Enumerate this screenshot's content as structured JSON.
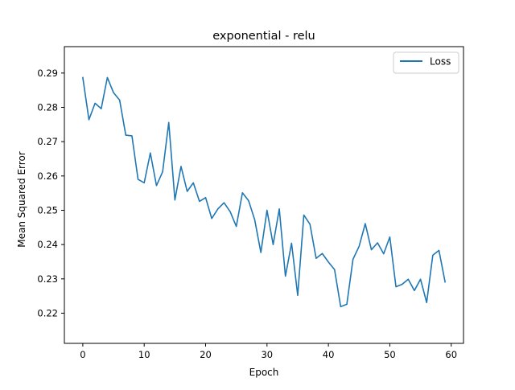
{
  "chart_data": {
    "type": "line",
    "title": "exponential - relu",
    "xlabel": "Epoch",
    "ylabel": "Mean Squared Error",
    "xlim": [
      -3,
      62
    ],
    "ylim": [
      0.2112,
      0.2977
    ],
    "x_ticks": [
      0,
      10,
      20,
      30,
      40,
      50,
      60
    ],
    "y_ticks": [
      0.22,
      0.23,
      0.24,
      0.25,
      0.26,
      0.27,
      0.28,
      0.29
    ],
    "x_tick_labels": [
      "0",
      "10",
      "20",
      "30",
      "40",
      "50",
      "60"
    ],
    "y_tick_labels": [
      "0.22",
      "0.23",
      "0.24",
      "0.25",
      "0.26",
      "0.27",
      "0.28",
      "0.29"
    ],
    "grid": false,
    "legend_position": "upper right",
    "series": [
      {
        "name": "Loss",
        "color": "#1f77b4",
        "x": [
          0,
          1,
          2,
          3,
          4,
          5,
          6,
          7,
          8,
          9,
          10,
          11,
          12,
          13,
          14,
          15,
          16,
          17,
          18,
          19,
          20,
          21,
          22,
          23,
          24,
          25,
          26,
          27,
          28,
          29,
          30,
          31,
          32,
          33,
          34,
          35,
          36,
          37,
          38,
          39,
          40,
          41,
          42,
          43,
          44,
          45,
          46,
          47,
          48,
          49,
          50,
          51,
          52,
          53,
          54,
          55,
          56,
          57,
          58,
          59
        ],
        "values": [
          0.2887,
          0.2764,
          0.2812,
          0.2796,
          0.2887,
          0.2843,
          0.2821,
          0.2719,
          0.2717,
          0.259,
          0.258,
          0.2667,
          0.2572,
          0.2612,
          0.2756,
          0.253,
          0.2628,
          0.2555,
          0.258,
          0.2526,
          0.2537,
          0.2476,
          0.2504,
          0.2522,
          0.2496,
          0.2453,
          0.2551,
          0.2528,
          0.2472,
          0.2377,
          0.25,
          0.24,
          0.2504,
          0.2308,
          0.2404,
          0.2252,
          0.2486,
          0.2459,
          0.236,
          0.2374,
          0.2349,
          0.2327,
          0.2219,
          0.2226,
          0.2357,
          0.2395,
          0.2461,
          0.2385,
          0.2405,
          0.2373,
          0.2422,
          0.2277,
          0.2284,
          0.2299,
          0.2266,
          0.2299,
          0.2231,
          0.2369,
          0.2383,
          0.2291
        ]
      }
    ]
  }
}
